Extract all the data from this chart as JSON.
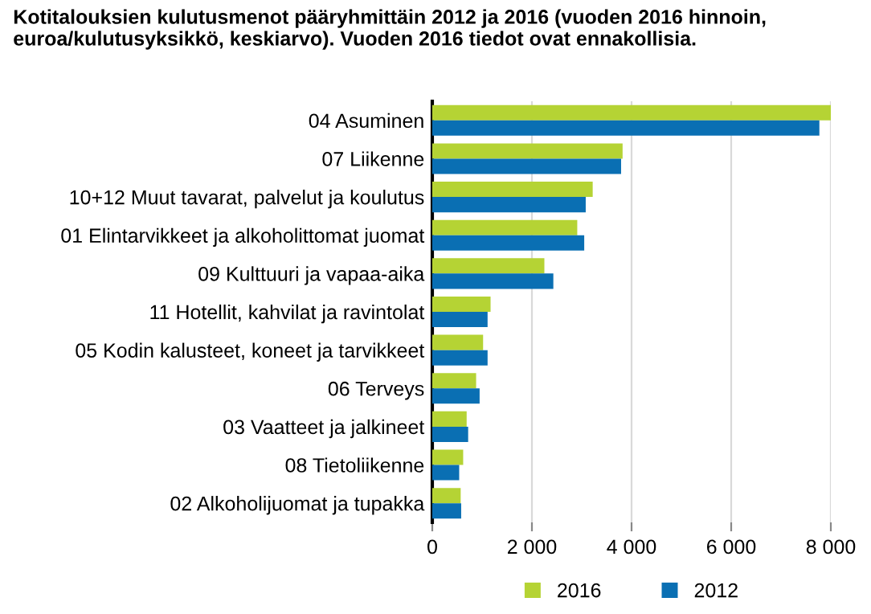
{
  "chart_data": {
    "type": "bar",
    "orientation": "horizontal",
    "title": "Kotitalouksien kulutusmenot pääryhmittäin 2012 ja 2016 (vuoden 2016 hinnoin, euroa/kulutusyksikkö, keskiarvo). Vuoden 2016 tiedot ovat ennakollisia.",
    "categories": [
      "04 Asuminen",
      "07 Liikenne",
      "10+12 Muut tavarat, palvelut ja koulutus",
      "01 Elintarvikkeet ja alkoholittomat juomat",
      "09 Kulttuuri ja vapaa-aika",
      "11 Hotellit, kahvilat ja ravintolat",
      "05 Kodin kalusteet, koneet ja tarvikkeet",
      "06 Terveys",
      "03 Vaatteet ja jalkineet",
      "08 Tietoliikenne",
      "02 Alkoholijuomat ja tupakka"
    ],
    "series": [
      {
        "name": "2016",
        "color": "#b5d334",
        "values": [
          8000,
          3820,
          3220,
          2910,
          2250,
          1170,
          1020,
          880,
          690,
          620,
          570
        ]
      },
      {
        "name": "2012",
        "color": "#0a6fb3",
        "values": [
          7770,
          3790,
          3080,
          3050,
          2430,
          1110,
          1110,
          950,
          720,
          540,
          580
        ]
      }
    ],
    "xlim": [
      0,
      8000
    ],
    "xticks": [
      {
        "value": 0,
        "label": "0"
      },
      {
        "value": 2000,
        "label": "2 000"
      },
      {
        "value": 4000,
        "label": "4 000"
      },
      {
        "value": 6000,
        "label": "6 000"
      },
      {
        "value": 8000,
        "label": "8 000"
      }
    ],
    "grid": "x",
    "legend": "bottom"
  }
}
